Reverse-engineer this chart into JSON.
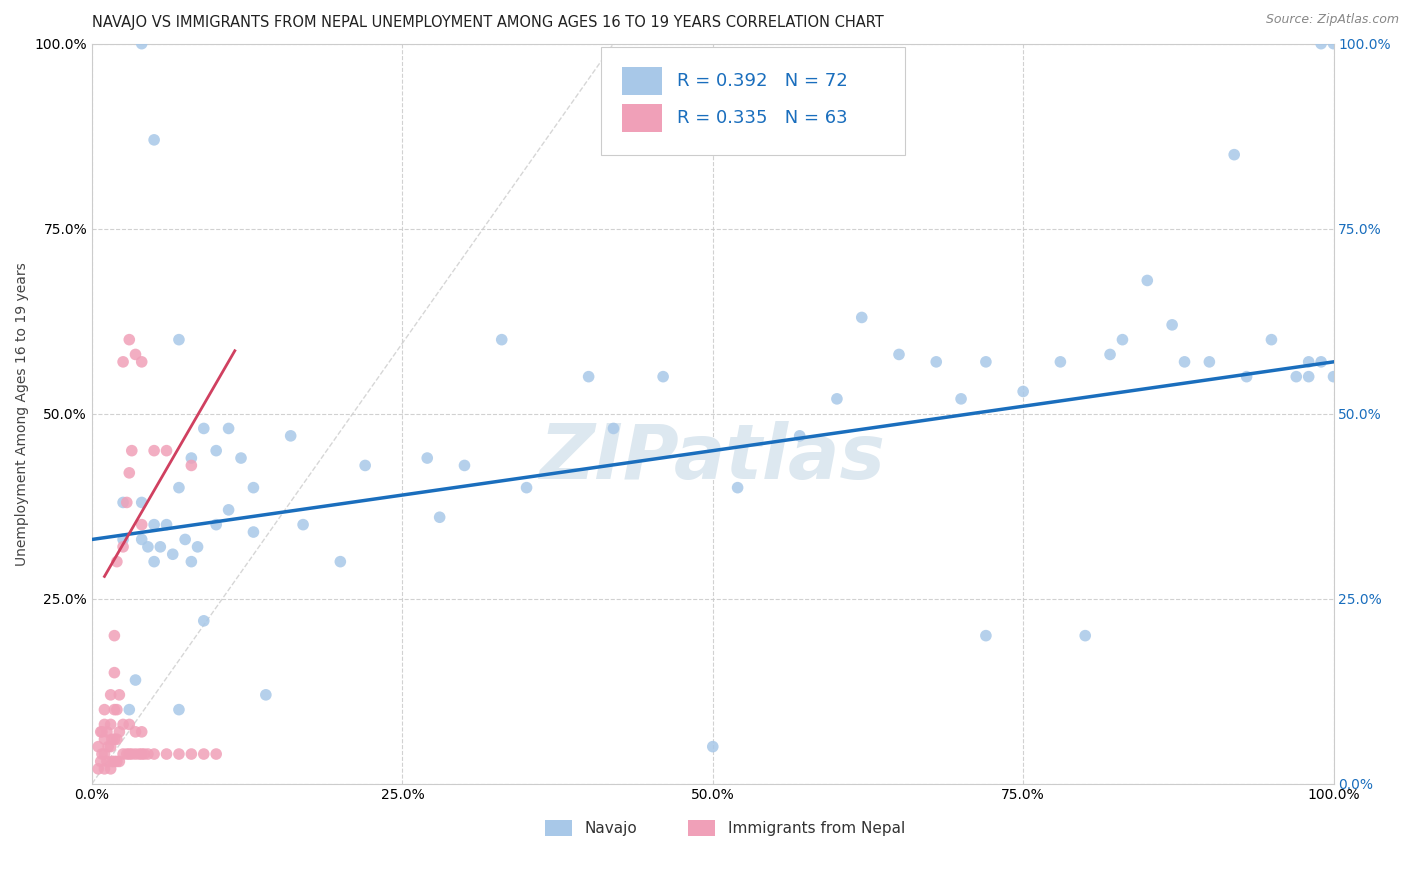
{
  "title": "NAVAJO VS IMMIGRANTS FROM NEPAL UNEMPLOYMENT AMONG AGES 16 TO 19 YEARS CORRELATION CHART",
  "source": "Source: ZipAtlas.com",
  "ylabel": "Unemployment Among Ages 16 to 19 years",
  "xlim": [
    0.0,
    1.0
  ],
  "ylim": [
    0.0,
    1.0
  ],
  "xticks": [
    0.0,
    0.25,
    0.5,
    0.75,
    1.0
  ],
  "yticks": [
    0.0,
    0.25,
    0.5,
    0.75,
    1.0
  ],
  "xtick_labels": [
    "0.0%",
    "25.0%",
    "50.0%",
    "75.0%",
    "100.0%"
  ],
  "ytick_labels": [
    "",
    "25.0%",
    "50.0%",
    "75.0%",
    "100.0%"
  ],
  "right_ytick_labels": [
    "0.0%",
    "25.0%",
    "50.0%",
    "75.0%",
    "100.0%"
  ],
  "navajo_color": "#a8c8e8",
  "nepal_color": "#f0a0b8",
  "navajo_label": "Navajo",
  "nepal_label": "Immigrants from Nepal",
  "navajo_R": "0.392",
  "navajo_N": "72",
  "nepal_R": "0.335",
  "nepal_N": "63",
  "legend_text_color": "#1a6ebd",
  "navajo_line_color": "#1a6ebd",
  "nepal_line_color": "#d04060",
  "nepal_line_dashed_color": "#d8a0b0",
  "watermark": "ZIPatlas",
  "background_color": "#ffffff",
  "grid_color": "#cccccc",
  "navajo_scatter_x": [
    0.025,
    0.025,
    0.03,
    0.035,
    0.04,
    0.04,
    0.045,
    0.05,
    0.05,
    0.055,
    0.06,
    0.065,
    0.07,
    0.07,
    0.075,
    0.08,
    0.08,
    0.085,
    0.09,
    0.09,
    0.1,
    0.1,
    0.11,
    0.11,
    0.12,
    0.13,
    0.13,
    0.14,
    0.16,
    0.17,
    0.2,
    0.22,
    0.27,
    0.28,
    0.3,
    0.33,
    0.35,
    0.4,
    0.42,
    0.46,
    0.5,
    0.52,
    0.57,
    0.6,
    0.62,
    0.65,
    0.68,
    0.7,
    0.72,
    0.75,
    0.78,
    0.8,
    0.82,
    0.83,
    0.85,
    0.87,
    0.88,
    0.9,
    0.92,
    0.93,
    0.95,
    0.97,
    0.98,
    0.98,
    0.99,
    1.0,
    1.0,
    0.04,
    0.05,
    0.07,
    0.72,
    0.99
  ],
  "navajo_scatter_y": [
    0.33,
    0.38,
    0.1,
    0.14,
    0.33,
    0.38,
    0.32,
    0.3,
    0.35,
    0.32,
    0.35,
    0.31,
    0.1,
    0.4,
    0.33,
    0.3,
    0.44,
    0.32,
    0.22,
    0.48,
    0.35,
    0.45,
    0.37,
    0.48,
    0.44,
    0.34,
    0.4,
    0.12,
    0.47,
    0.35,
    0.3,
    0.43,
    0.44,
    0.36,
    0.43,
    0.6,
    0.4,
    0.55,
    0.48,
    0.55,
    0.05,
    0.4,
    0.47,
    0.52,
    0.63,
    0.58,
    0.57,
    0.52,
    0.57,
    0.53,
    0.57,
    0.2,
    0.58,
    0.6,
    0.68,
    0.62,
    0.57,
    0.57,
    0.85,
    0.55,
    0.6,
    0.55,
    0.55,
    0.57,
    0.57,
    0.55,
    1.0,
    1.0,
    0.87,
    0.6,
    0.2,
    1.0
  ],
  "nepal_scatter_x": [
    0.005,
    0.005,
    0.007,
    0.007,
    0.008,
    0.008,
    0.01,
    0.01,
    0.01,
    0.01,
    0.01,
    0.012,
    0.012,
    0.013,
    0.015,
    0.015,
    0.015,
    0.015,
    0.016,
    0.016,
    0.018,
    0.018,
    0.018,
    0.018,
    0.018,
    0.02,
    0.02,
    0.02,
    0.02,
    0.022,
    0.022,
    0.022,
    0.025,
    0.025,
    0.025,
    0.028,
    0.028,
    0.03,
    0.03,
    0.03,
    0.032,
    0.032,
    0.035,
    0.035,
    0.038,
    0.04,
    0.04,
    0.04,
    0.042,
    0.045,
    0.05,
    0.06,
    0.07,
    0.08,
    0.09,
    0.1,
    0.025,
    0.03,
    0.035,
    0.04,
    0.05,
    0.06,
    0.08
  ],
  "nepal_scatter_y": [
    0.02,
    0.05,
    0.03,
    0.07,
    0.04,
    0.07,
    0.02,
    0.04,
    0.06,
    0.08,
    0.1,
    0.03,
    0.07,
    0.05,
    0.02,
    0.05,
    0.08,
    0.12,
    0.03,
    0.06,
    0.03,
    0.06,
    0.1,
    0.15,
    0.2,
    0.03,
    0.06,
    0.1,
    0.3,
    0.03,
    0.07,
    0.12,
    0.04,
    0.08,
    0.32,
    0.04,
    0.38,
    0.04,
    0.08,
    0.42,
    0.04,
    0.45,
    0.04,
    0.07,
    0.04,
    0.04,
    0.07,
    0.35,
    0.04,
    0.04,
    0.04,
    0.04,
    0.04,
    0.04,
    0.04,
    0.04,
    0.57,
    0.6,
    0.58,
    0.57,
    0.45,
    0.45,
    0.43
  ],
  "navajo_trend_x": [
    0.0,
    1.0
  ],
  "navajo_trend_y": [
    0.33,
    0.57
  ],
  "nepal_trend_x": [
    0.01,
    0.115
  ],
  "nepal_trend_y": [
    0.28,
    0.585
  ],
  "diag_line_x": [
    0.0,
    0.42
  ],
  "diag_line_y": [
    0.0,
    1.0
  ],
  "title_fontsize": 10.5,
  "axis_label_fontsize": 10,
  "tick_fontsize": 10,
  "legend_fontsize": 13,
  "scatter_size": 70
}
